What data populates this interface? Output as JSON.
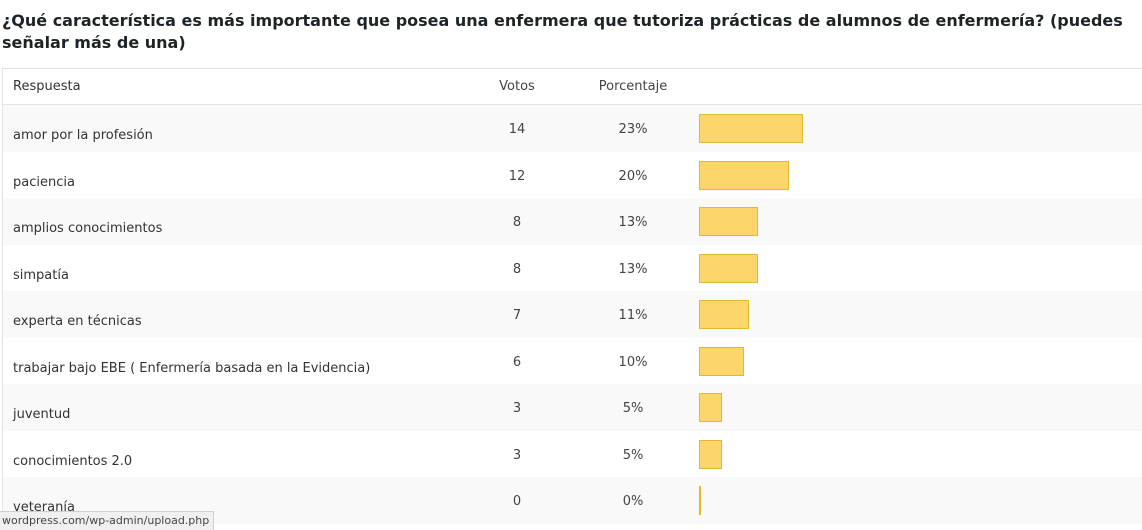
{
  "question": "¿Qué característica es más importante que posea una enfermera que tutoriza prácticas de alumnos de enfermería? (puedes señalar más de una)",
  "table": {
    "headers": {
      "answer": "Respuesta",
      "votes": "Votos",
      "percent": "Porcentaje"
    },
    "rows": [
      {
        "answer": "amor por la profesión",
        "votes": "14",
        "percent": "23%",
        "fraction": 0.23
      },
      {
        "answer": "paciencia",
        "votes": "12",
        "percent": "20%",
        "fraction": 0.2
      },
      {
        "answer": "amplios conocimientos",
        "votes": "8",
        "percent": "13%",
        "fraction": 0.13
      },
      {
        "answer": "simpatía",
        "votes": "8",
        "percent": "13%",
        "fraction": 0.13
      },
      {
        "answer": "experta en técnicas",
        "votes": "7",
        "percent": "11%",
        "fraction": 0.11
      },
      {
        "answer": "trabajar bajo EBE ( Enfermería basada en la Evidencia)",
        "votes": "6",
        "percent": "10%",
        "fraction": 0.1
      },
      {
        "answer": "juventud",
        "votes": "3",
        "percent": "5%",
        "fraction": 0.05
      },
      {
        "answer": "conocimientos 2.0",
        "votes": "3",
        "percent": "5%",
        "fraction": 0.05
      },
      {
        "answer": "veteranía",
        "votes": "0",
        "percent": "0%",
        "fraction": 0.0
      }
    ]
  },
  "colors": {
    "bar_fill": "#fcd66a",
    "bar_border": "#e6b730",
    "alt_row": "#f9f9f9"
  },
  "status_bar": {
    "url": "wordpress.com/wp-admin/upload.php"
  }
}
